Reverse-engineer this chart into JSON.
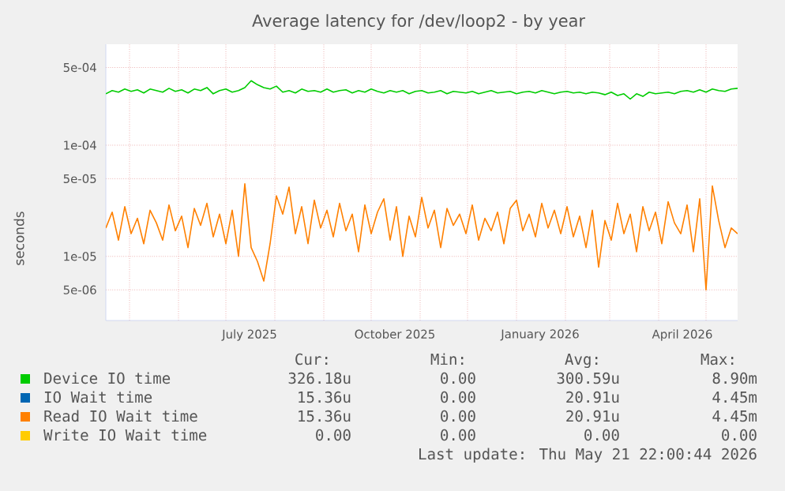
{
  "chart_data": {
    "type": "line",
    "title": "Average latency for /dev/loop2 - by year",
    "ylabel": "seconds",
    "x": [
      "2025-04-16",
      "2025-04-20",
      "2025-04-24",
      "2025-04-28",
      "2025-05-02",
      "2025-05-06",
      "2025-05-10",
      "2025-05-14",
      "2025-05-18",
      "2025-05-22",
      "2025-05-26",
      "2025-05-30",
      "2025-06-03",
      "2025-06-07",
      "2025-06-11",
      "2025-06-15",
      "2025-06-19",
      "2025-06-23",
      "2025-06-27",
      "2025-07-01",
      "2025-07-05",
      "2025-07-09",
      "2025-07-13",
      "2025-07-17",
      "2025-07-21",
      "2025-07-25",
      "2025-07-29",
      "2025-08-02",
      "2025-08-06",
      "2025-08-10",
      "2025-08-14",
      "2025-08-18",
      "2025-08-22",
      "2025-08-26",
      "2025-08-30",
      "2025-09-03",
      "2025-09-07",
      "2025-09-11",
      "2025-09-15",
      "2025-09-19",
      "2025-09-23",
      "2025-09-27",
      "2025-10-01",
      "2025-10-05",
      "2025-10-09",
      "2025-10-13",
      "2025-10-17",
      "2025-10-21",
      "2025-10-25",
      "2025-10-29",
      "2025-11-02",
      "2025-11-06",
      "2025-11-10",
      "2025-11-14",
      "2025-11-18",
      "2025-11-22",
      "2025-11-26",
      "2025-11-30",
      "2025-12-04",
      "2025-12-08",
      "2025-12-12",
      "2025-12-16",
      "2025-12-20",
      "2025-12-24",
      "2025-12-28",
      "2026-01-01",
      "2026-01-05",
      "2026-01-09",
      "2026-01-13",
      "2026-01-17",
      "2026-01-21",
      "2026-01-25",
      "2026-01-29",
      "2026-02-02",
      "2026-02-06",
      "2026-02-10",
      "2026-02-14",
      "2026-02-18",
      "2026-02-22",
      "2026-02-26",
      "2026-03-02",
      "2026-03-06",
      "2026-03-10",
      "2026-03-14",
      "2026-03-18",
      "2026-03-22",
      "2026-03-26",
      "2026-03-30",
      "2026-04-03",
      "2026-04-07",
      "2026-04-11",
      "2026-04-15",
      "2026-04-19",
      "2026-04-23",
      "2026-04-27",
      "2026-05-01",
      "2026-05-05",
      "2026-05-09",
      "2026-05-13",
      "2026-05-17",
      "2026-05-21"
    ],
    "series": [
      {
        "name": "Device IO time",
        "color": "#00cc00",
        "values": [
          0.00029,
          0.00031,
          0.0003,
          0.00032,
          0.000305,
          0.000315,
          0.000295,
          0.00032,
          0.00031,
          0.0003,
          0.000325,
          0.000305,
          0.000315,
          0.000295,
          0.00032,
          0.00031,
          0.00033,
          0.00029,
          0.00031,
          0.00032,
          0.0003,
          0.00031,
          0.00033,
          0.00038,
          0.00035,
          0.00033,
          0.00032,
          0.00034,
          0.0003,
          0.00031,
          0.000295,
          0.00032,
          0.000305,
          0.00031,
          0.0003,
          0.00032,
          0.0003,
          0.00031,
          0.000315,
          0.000295,
          0.00031,
          0.0003,
          0.00032,
          0.000305,
          0.000295,
          0.00031,
          0.0003,
          0.00031,
          0.00029,
          0.000305,
          0.00031,
          0.000295,
          0.0003,
          0.00031,
          0.00029,
          0.000305,
          0.0003,
          0.000295,
          0.000305,
          0.00029,
          0.0003,
          0.00031,
          0.000295,
          0.0003,
          0.000305,
          0.00029,
          0.0003,
          0.000305,
          0.000295,
          0.00031,
          0.0003,
          0.00029,
          0.0003,
          0.000305,
          0.000295,
          0.0003,
          0.00029,
          0.0003,
          0.000295,
          0.000285,
          0.0003,
          0.00028,
          0.00029,
          0.00026,
          0.00029,
          0.000275,
          0.0003,
          0.00029,
          0.000295,
          0.0003,
          0.00029,
          0.000305,
          0.00031,
          0.0003,
          0.000315,
          0.0003,
          0.00032,
          0.00031,
          0.000305,
          0.00032,
          0.000325
        ]
      },
      {
        "name": "IO Wait time",
        "color": "#0066b3",
        "values": [
          null,
          null,
          null,
          null,
          null,
          null,
          null,
          null,
          null,
          null,
          null,
          null,
          null,
          null,
          null,
          null,
          null,
          null,
          null,
          null,
          null,
          null,
          null,
          null,
          null,
          null,
          null,
          null,
          null,
          null,
          null,
          null,
          null,
          null,
          null,
          null,
          null,
          null,
          null,
          null,
          null,
          null,
          null,
          null,
          null,
          null,
          null,
          null,
          null,
          null,
          null,
          null,
          null,
          null,
          null,
          null,
          null,
          null,
          null,
          null,
          null,
          null,
          null,
          null,
          null,
          null,
          null,
          null,
          null,
          null,
          null,
          null,
          null,
          null,
          null,
          null,
          null,
          null,
          null,
          null,
          null,
          null,
          null,
          null,
          null,
          null,
          null,
          null,
          null,
          null,
          null,
          null,
          null,
          null,
          null,
          null,
          null,
          null,
          null,
          null,
          null
        ]
      },
      {
        "name": "Read IO Wait time",
        "color": "#ff8000",
        "values": [
          1.8e-05,
          2.5e-05,
          1.4e-05,
          2.8e-05,
          1.6e-05,
          2.2e-05,
          1.3e-05,
          2.6e-05,
          2e-05,
          1.4e-05,
          2.9e-05,
          1.7e-05,
          2.3e-05,
          1.2e-05,
          2.7e-05,
          1.9e-05,
          3e-05,
          1.5e-05,
          2.4e-05,
          1.3e-05,
          2.6e-05,
          1e-05,
          4.5e-05,
          1.2e-05,
          9e-06,
          6e-06,
          1.3e-05,
          3.5e-05,
          2.4e-05,
          4.2e-05,
          1.6e-05,
          2.8e-05,
          1.3e-05,
          3.2e-05,
          1.8e-05,
          2.6e-05,
          1.5e-05,
          3e-05,
          1.7e-05,
          2.4e-05,
          1.1e-05,
          2.9e-05,
          1.6e-05,
          2.5e-05,
          3.3e-05,
          1.4e-05,
          2.8e-05,
          1e-05,
          2.3e-05,
          1.5e-05,
          3.4e-05,
          1.8e-05,
          2.6e-05,
          1.2e-05,
          2.7e-05,
          1.9e-05,
          2.4e-05,
          1.6e-05,
          2.9e-05,
          1.4e-05,
          2.2e-05,
          1.7e-05,
          2.5e-05,
          1.3e-05,
          2.7e-05,
          3.2e-05,
          1.7e-05,
          2.4e-05,
          1.5e-05,
          3e-05,
          1.8e-05,
          2.6e-05,
          1.6e-05,
          2.8e-05,
          1.5e-05,
          2.3e-05,
          1.2e-05,
          2.6e-05,
          8e-06,
          2.1e-05,
          1.4e-05,
          3e-05,
          1.6e-05,
          2.4e-05,
          1.1e-05,
          2.8e-05,
          1.7e-05,
          2.5e-05,
          1.3e-05,
          3.1e-05,
          2e-05,
          1.6e-05,
          2.9e-05,
          1.1e-05,
          3.3e-05,
          5e-06,
          4.3e-05,
          2.1e-05,
          1.2e-05,
          1.8e-05,
          1.6e-05
        ]
      },
      {
        "name": "Write IO Wait time",
        "color": "#ffcc00",
        "values": [
          null,
          null,
          null,
          null,
          null,
          null,
          null,
          null,
          null,
          null,
          null,
          null,
          null,
          null,
          null,
          null,
          null,
          null,
          null,
          null,
          null,
          null,
          null,
          null,
          null,
          null,
          null,
          null,
          null,
          null,
          null,
          null,
          null,
          null,
          null,
          null,
          null,
          null,
          null,
          null,
          null,
          null,
          null,
          null,
          null,
          null,
          null,
          null,
          null,
          null,
          null,
          null,
          null,
          null,
          null,
          null,
          null,
          null,
          null,
          null,
          null,
          null,
          null,
          null,
          null,
          null,
          null,
          null,
          null,
          null,
          null,
          null,
          null,
          null,
          null,
          null,
          null,
          null,
          null,
          null,
          null,
          null,
          null,
          null,
          null,
          null,
          null,
          null,
          null,
          null,
          null,
          null,
          null,
          null,
          null,
          null,
          null,
          null,
          null,
          null,
          null
        ]
      }
    ],
    "xlim": [
      "2025-04-16",
      "2026-05-21"
    ],
    "xticks": [
      {
        "value": "2025-05-01",
        "label": null
      },
      {
        "value": "2025-06-01",
        "label": null
      },
      {
        "value": "2025-07-01",
        "label": null
      },
      {
        "value": "2025-07-16",
        "label": "July 2025"
      },
      {
        "value": "2025-08-01",
        "label": null
      },
      {
        "value": "2025-09-01",
        "label": null
      },
      {
        "value": "2025-10-01",
        "label": null
      },
      {
        "value": "2025-10-16",
        "label": "October 2025"
      },
      {
        "value": "2025-11-01",
        "label": null
      },
      {
        "value": "2025-12-01",
        "label": null
      },
      {
        "value": "2026-01-01",
        "label": null
      },
      {
        "value": "2026-01-16",
        "label": "January 2026"
      },
      {
        "value": "2026-02-01",
        "label": null
      },
      {
        "value": "2026-03-01",
        "label": null
      },
      {
        "value": "2026-04-01",
        "label": null
      },
      {
        "value": "2026-04-16",
        "label": "April 2026"
      },
      {
        "value": "2026-05-01",
        "label": null
      }
    ],
    "ylim": [
      2.65e-06,
      0.00081
    ],
    "yticks": [
      {
        "value": 5e-06,
        "label": "5e-06"
      },
      {
        "value": 1e-05,
        "label": "1e-05"
      },
      {
        "value": 5e-05,
        "label": "5e-05"
      },
      {
        "value": 0.0001,
        "label": "1e-04"
      },
      {
        "value": 0.0005,
        "label": "5e-04"
      }
    ],
    "log": true,
    "grid": true,
    "legend": "bottom",
    "annotations": [
      "Cur:",
      "Min:",
      "Avg:",
      "Max:",
      "326.18u",
      "0.00",
      "300.59u",
      "8.90m",
      "15.36u",
      "0.00",
      "20.91u",
      "4.45m",
      "15.36u",
      "0.00",
      "20.91u",
      "4.45m",
      "0.00",
      "0.00",
      "0.00",
      "0.00",
      "Last update: Thu May 21 22:00:44 2026"
    ]
  }
}
